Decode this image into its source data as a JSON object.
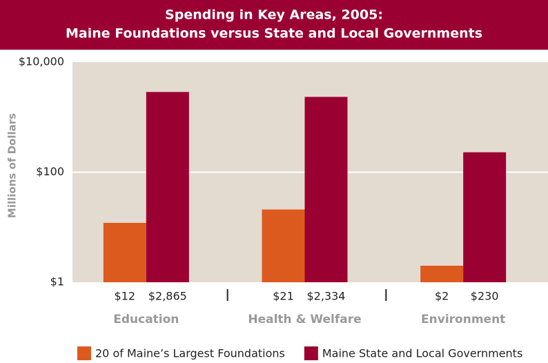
{
  "chart_data": {
    "type": "bar",
    "title": "Spending in Key Areas, 2005:",
    "subtitle": "Maine Foundations versus State and Local Governments",
    "y_label": "Millions of Dollars",
    "categories": [
      "Education",
      "Health & Welfare",
      "Environment"
    ],
    "series": [
      {
        "name": "20 of Maine’s Largest Foundations",
        "color": "#dc5a1e",
        "values": [
          12,
          21,
          2
        ],
        "value_labels": [
          "$12",
          "$21",
          "$2"
        ]
      },
      {
        "name": "Maine State and Local Governments",
        "color": "#9b0032",
        "values": [
          2865,
          2334,
          230
        ],
        "value_labels": [
          "$2,865",
          "$2,334",
          "$230"
        ]
      }
    ],
    "ylim": [
      1,
      10000
    ],
    "yticks": [
      {
        "value": 1,
        "label": "$1"
      },
      {
        "value": 100,
        "label": "$100"
      },
      {
        "value": 10000,
        "label": "$10,000"
      }
    ],
    "log_scale": true,
    "grid": true
  }
}
